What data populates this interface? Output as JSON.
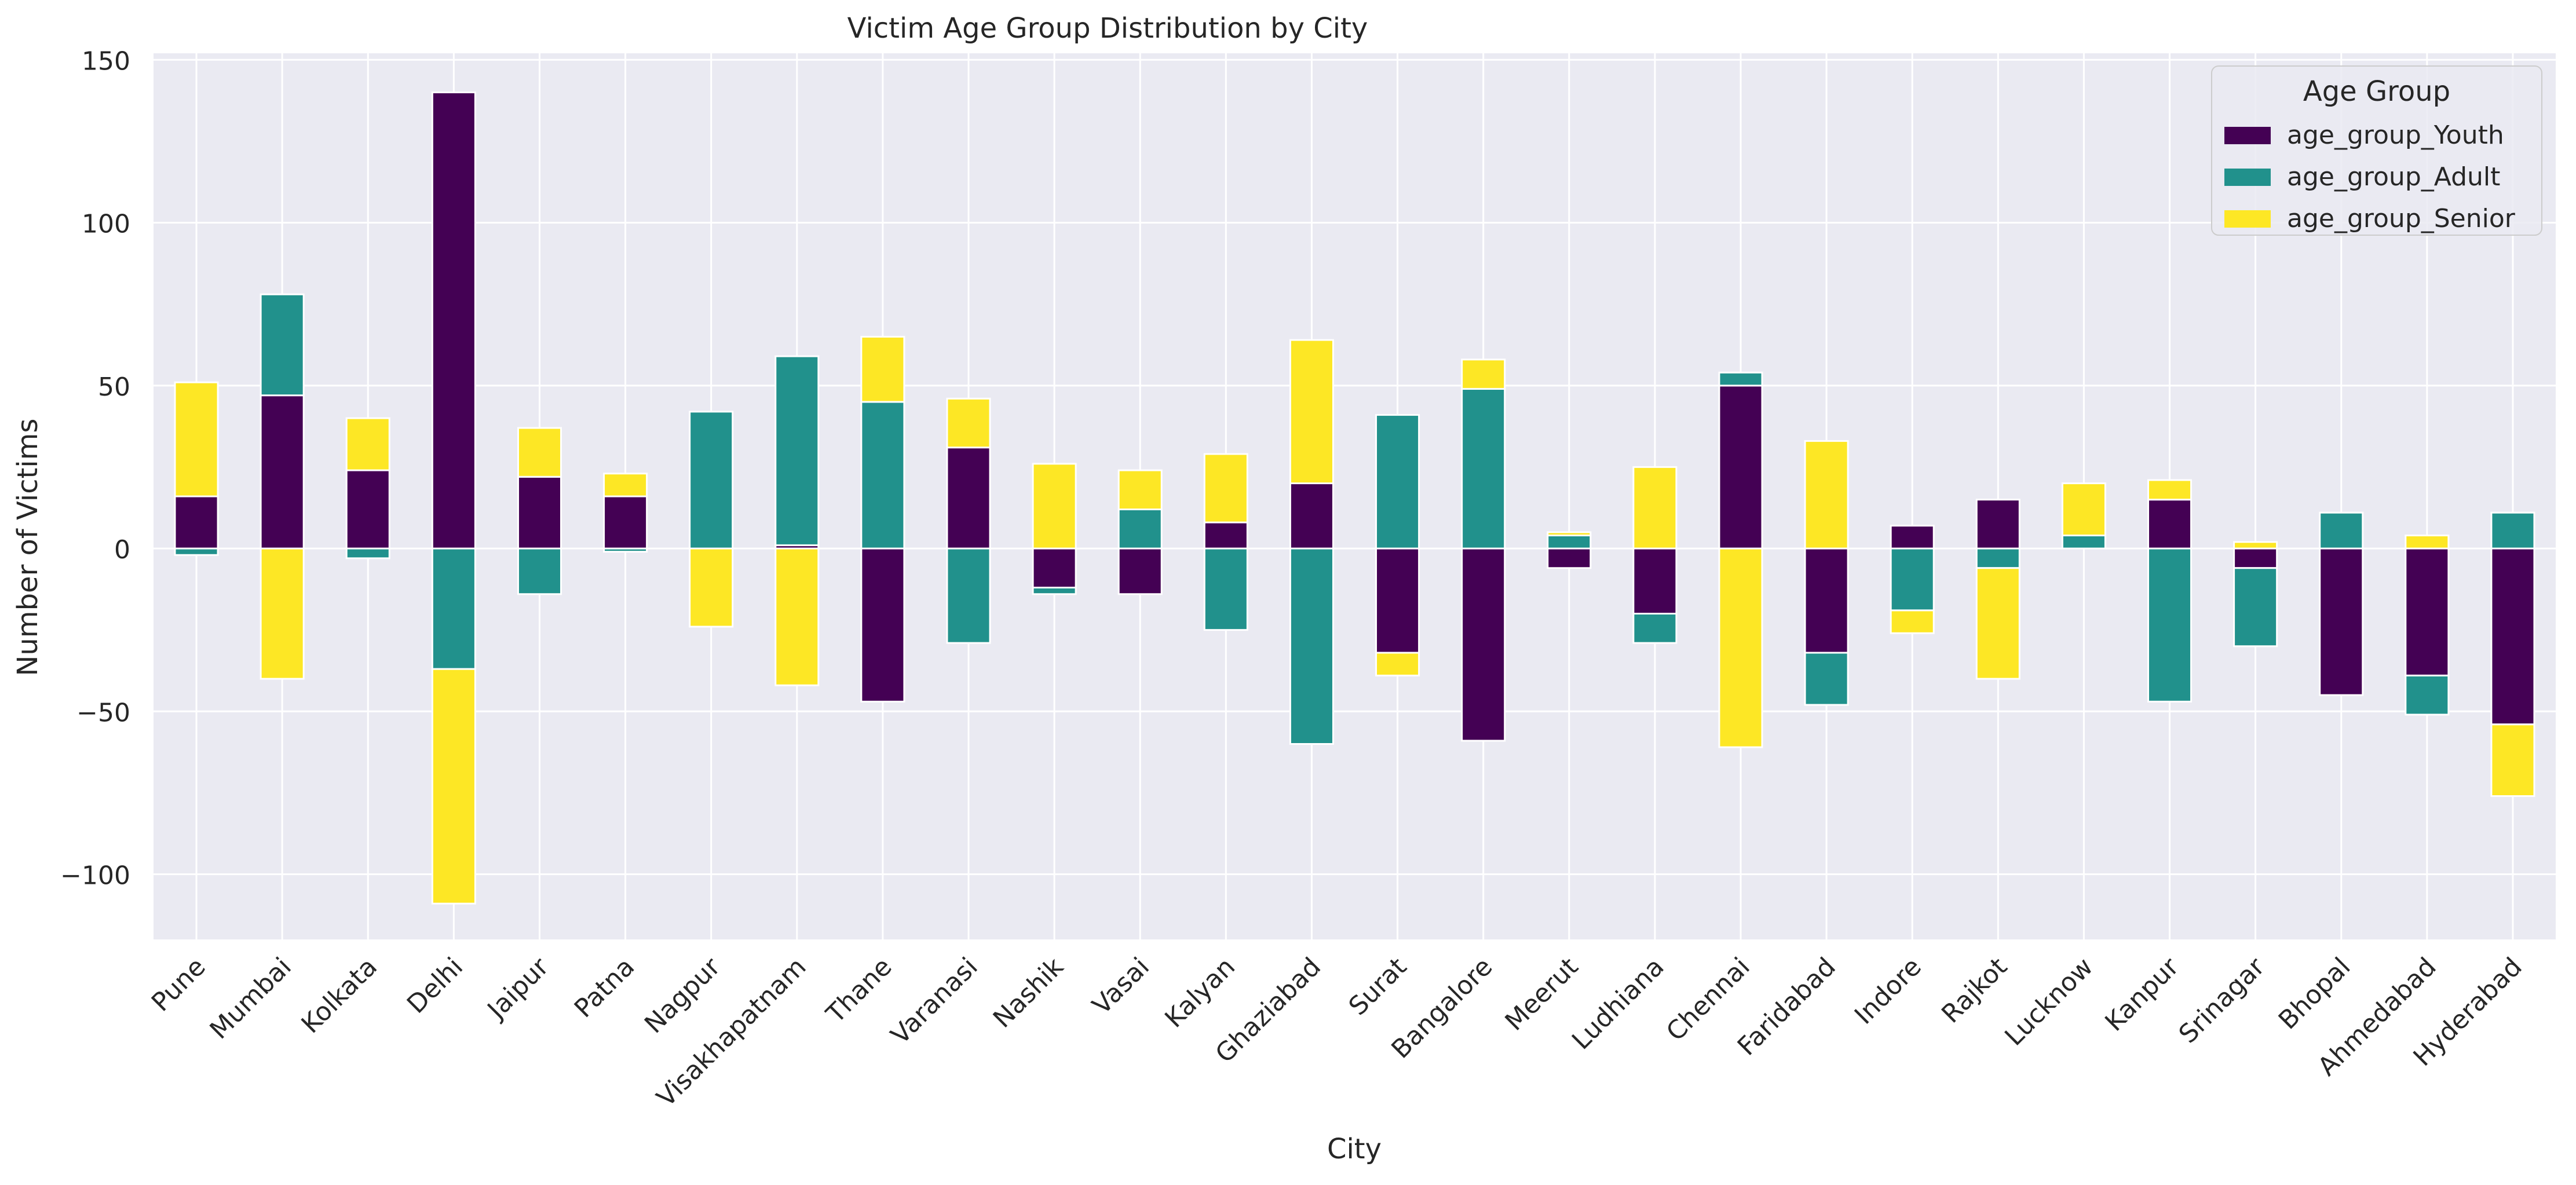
{
  "chart_data": {
    "type": "bar",
    "stacked": true,
    "title": "Victim Age Group Distribution by City",
    "xlabel": "City",
    "ylabel": "Number of Victims",
    "ylim": [
      -120,
      152
    ],
    "yticks": [
      -100,
      -50,
      0,
      50,
      100,
      150
    ],
    "ytick_labels": [
      "−100",
      "−50",
      "0",
      "50",
      "100",
      "150"
    ],
    "grid": true,
    "legend": {
      "title": "Age Group",
      "placement": "top-right"
    },
    "categories": [
      "Pune",
      "Mumbai",
      "Kolkata",
      "Delhi",
      "Jaipur",
      "Patna",
      "Nagpur",
      "Visakhapatnam",
      "Thane",
      "Varanasi",
      "Nashik",
      "Vasai",
      "Kalyan",
      "Ghaziabad",
      "Surat",
      "Bangalore",
      "Meerut",
      "Ludhiana",
      "Chennai",
      "Faridabad",
      "Indore",
      "Rajkot",
      "Lucknow",
      "Kanpur",
      "Srinagar",
      "Bhopal",
      "Ahmedabad",
      "Hyderabad"
    ],
    "series": [
      {
        "name": "age_group_Youth",
        "color": "#440154",
        "values": [
          16,
          47,
          24,
          140,
          22,
          16,
          0,
          1,
          -47,
          31,
          -12,
          -14,
          8,
          20,
          -32,
          -59,
          -6,
          -20,
          50,
          -32,
          7,
          15,
          0,
          15,
          -6,
          -45,
          -39,
          -54
        ]
      },
      {
        "name": "age_group_Adult",
        "color": "#21918c",
        "values": [
          -2,
          31,
          -3,
          -37,
          -14,
          -1,
          42,
          58,
          45,
          -29,
          -2,
          12,
          -25,
          -60,
          41,
          49,
          4,
          -9,
          4,
          -16,
          -19,
          -6,
          4,
          -47,
          -24,
          11,
          -12,
          11
        ]
      },
      {
        "name": "age_group_Senior",
        "color": "#fde725",
        "values": [
          35,
          -40,
          16,
          -72,
          15,
          7,
          -24,
          -42,
          20,
          15,
          26,
          12,
          21,
          44,
          -7,
          9,
          1,
          25,
          -61,
          33,
          -7,
          -34,
          16,
          6,
          2,
          0,
          4,
          -22
        ]
      }
    ]
  }
}
